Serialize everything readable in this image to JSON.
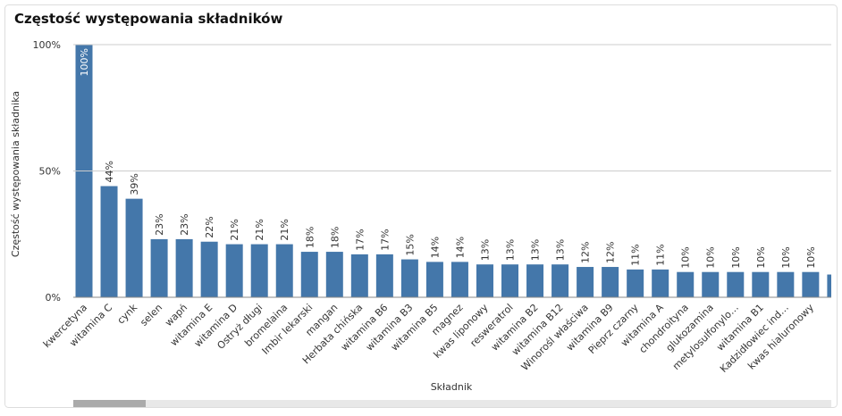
{
  "chart_data": {
    "type": "bar",
    "title": "Częstość występowania składników",
    "x_label": "Składnik",
    "y_label": "Częstość występowania składnika",
    "color": "#4477aa",
    "categories": [
      "kwercetyna",
      "witamina C",
      "cynk",
      "selen",
      "wapń",
      "witamina E",
      "witamina D",
      "Ostryż długi",
      "bromelaina",
      "Imbir lekarski",
      "mangan",
      "Herbata chińska",
      "witamina B6",
      "witamina B3",
      "witamina B5",
      "magnez",
      "kwas liponowy",
      "resweratrol",
      "witamina B2",
      "witamina B12",
      "Winorośl właściwa",
      "witamina B9",
      "Pieprz czarny",
      "witamina A",
      "chondroityna",
      "glukozamina",
      "metylosulfonylo…",
      "witamina B1",
      "Kadzidłowiec ind…",
      "kwas hialuronowy",
      null
    ],
    "values": [
      100,
      44,
      39,
      23,
      23,
      22,
      21,
      21,
      21,
      18,
      18,
      17,
      17,
      15,
      14,
      14,
      13,
      13,
      13,
      13,
      12,
      12,
      11,
      11,
      10,
      10,
      10,
      10,
      10,
      10,
      9
    ],
    "value_labels": [
      "100%",
      "44%",
      "39%",
      "23%",
      "23%",
      "22%",
      "21%",
      "21%",
      "21%",
      "18%",
      "18%",
      "17%",
      "17%",
      "15%",
      "14%",
      "14%",
      "13%",
      "13%",
      "13%",
      "13%",
      "12%",
      "12%",
      "11%",
      "11%",
      "10%",
      "10%",
      "10%",
      "10%",
      "10%",
      "10%",
      null
    ],
    "ylim": [
      0,
      100
    ],
    "yticks": [
      {
        "value": 0,
        "label": "0%"
      },
      {
        "value": 50,
        "label": "50%"
      },
      {
        "value": 100,
        "label": "100%"
      }
    ],
    "grid": true
  }
}
